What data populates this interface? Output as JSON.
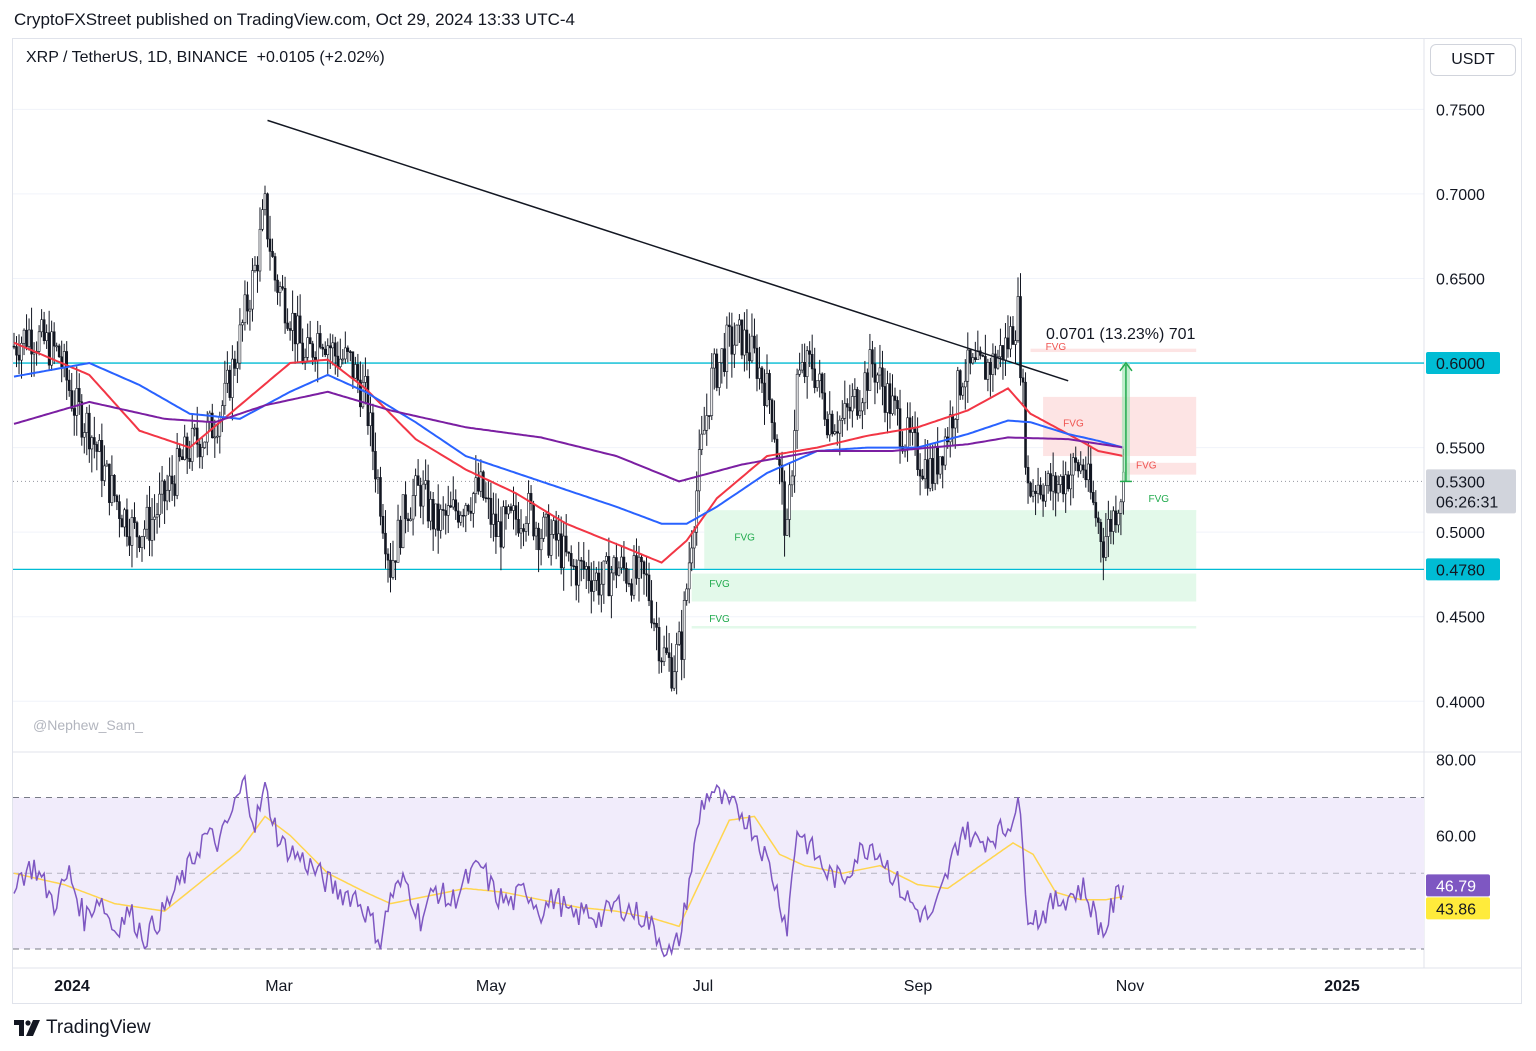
{
  "header": {
    "publish_text": "CryptoFXStreet published on TradingView.com, Oct 29, 2024 13:33 UTC-4",
    "symbol_text": "XRP / TetherUS, 1D, BINANCE",
    "change_text": "+0.0105 (+2.02%)",
    "currency": "USDT",
    "watermark": "@Nephew_Sam_",
    "footer": "TradingView"
  },
  "colors": {
    "up": "#ffffff",
    "down": "#131722",
    "ma_red": "#f23645",
    "ma_blue": "#2962ff",
    "ma_purple": "#7b1fa2",
    "level_line": "#00bcd4",
    "fvg_green": "#e3f9ea",
    "fvg_red": "#fde4e4",
    "rsi_line": "#7e57c2",
    "rsi_ma": "#ffd54f",
    "rsi_band": "#f1ecfb"
  },
  "chart_data": {
    "type": "candlestick",
    "symbol": "XRP / TetherUS",
    "timeframe": "1D",
    "exchange": "BINANCE",
    "y_range": [
      0.37,
      0.765
    ],
    "y_ticks": [
      "0.7500",
      "0.7000",
      "0.6500",
      "0.6000",
      "0.5500",
      "0.5000",
      "0.4500",
      "0.4000"
    ],
    "x_ticks": [
      "2024",
      "Mar",
      "May",
      "Jul",
      "Sep",
      "Nov",
      "2025"
    ],
    "current_price": "0.5300",
    "countdown": "06:26:31",
    "price_anchors": [
      [
        0,
        0.61
      ],
      [
        6,
        0.618
      ],
      [
        12,
        0.612
      ],
      [
        18,
        0.605
      ],
      [
        24,
        0.575
      ],
      [
        30,
        0.562
      ],
      [
        36,
        0.535
      ],
      [
        42,
        0.515
      ],
      [
        48,
        0.5
      ],
      [
        54,
        0.505
      ],
      [
        60,
        0.52
      ],
      [
        66,
        0.54
      ],
      [
        72,
        0.553
      ],
      [
        78,
        0.56
      ],
      [
        84,
        0.578
      ],
      [
        90,
        0.615
      ],
      [
        96,
        0.655
      ],
      [
        100,
        0.69
      ],
      [
        104,
        0.65
      ],
      [
        110,
        0.63
      ],
      [
        116,
        0.6
      ],
      [
        122,
        0.62
      ],
      [
        128,
        0.605
      ],
      [
        134,
        0.6
      ],
      [
        140,
        0.58
      ],
      [
        146,
        0.52
      ],
      [
        150,
        0.48
      ],
      [
        156,
        0.515
      ],
      [
        162,
        0.525
      ],
      [
        168,
        0.505
      ],
      [
        174,
        0.51
      ],
      [
        180,
        0.52
      ],
      [
        186,
        0.525
      ],
      [
        192,
        0.5
      ],
      [
        198,
        0.505
      ],
      [
        204,
        0.515
      ],
      [
        210,
        0.5
      ],
      [
        216,
        0.495
      ],
      [
        222,
        0.478
      ],
      [
        228,
        0.478
      ],
      [
        234,
        0.47
      ],
      [
        240,
        0.48
      ],
      [
        246,
        0.475
      ],
      [
        252,
        0.47
      ],
      [
        258,
        0.43
      ],
      [
        262,
        0.42
      ],
      [
        266,
        0.435
      ],
      [
        270,
        0.5
      ],
      [
        274,
        0.55
      ],
      [
        278,
        0.59
      ],
      [
        284,
        0.61
      ],
      [
        290,
        0.615
      ],
      [
        296,
        0.6
      ],
      [
        302,
        0.575
      ],
      [
        308,
        0.495
      ],
      [
        312,
        0.59
      ],
      [
        318,
        0.6
      ],
      [
        324,
        0.57
      ],
      [
        330,
        0.565
      ],
      [
        336,
        0.58
      ],
      [
        342,
        0.6
      ],
      [
        348,
        0.58
      ],
      [
        354,
        0.56
      ],
      [
        360,
        0.545
      ],
      [
        366,
        0.535
      ],
      [
        372,
        0.56
      ],
      [
        378,
        0.595
      ],
      [
        384,
        0.595
      ],
      [
        390,
        0.6
      ],
      [
        396,
        0.612
      ],
      [
        400,
        0.63
      ],
      [
        404,
        0.525
      ],
      [
        408,
        0.53
      ],
      [
        414,
        0.525
      ],
      [
        420,
        0.535
      ],
      [
        426,
        0.54
      ],
      [
        430,
        0.515
      ],
      [
        434,
        0.495
      ],
      [
        438,
        0.51
      ],
      [
        442,
        0.53
      ]
    ],
    "moving_averages": [
      {
        "name": "MA red",
        "color": "#f23645",
        "points": [
          [
            0,
            0.612
          ],
          [
            30,
            0.593
          ],
          [
            50,
            0.56
          ],
          [
            70,
            0.55
          ],
          [
            90,
            0.575
          ],
          [
            110,
            0.6
          ],
          [
            125,
            0.602
          ],
          [
            140,
            0.585
          ],
          [
            160,
            0.555
          ],
          [
            180,
            0.537
          ],
          [
            200,
            0.523
          ],
          [
            220,
            0.505
          ],
          [
            240,
            0.493
          ],
          [
            258,
            0.482
          ],
          [
            268,
            0.495
          ],
          [
            280,
            0.52
          ],
          [
            300,
            0.545
          ],
          [
            320,
            0.55
          ],
          [
            340,
            0.557
          ],
          [
            360,
            0.562
          ],
          [
            380,
            0.572
          ],
          [
            396,
            0.585
          ],
          [
            405,
            0.57
          ],
          [
            420,
            0.558
          ],
          [
            432,
            0.548
          ],
          [
            442,
            0.545
          ]
        ]
      },
      {
        "name": "MA blue",
        "color": "#2962ff",
        "points": [
          [
            0,
            0.592
          ],
          [
            30,
            0.6
          ],
          [
            50,
            0.587
          ],
          [
            70,
            0.57
          ],
          [
            90,
            0.567
          ],
          [
            110,
            0.583
          ],
          [
            125,
            0.593
          ],
          [
            140,
            0.583
          ],
          [
            160,
            0.565
          ],
          [
            180,
            0.545
          ],
          [
            200,
            0.535
          ],
          [
            220,
            0.525
          ],
          [
            240,
            0.515
          ],
          [
            258,
            0.505
          ],
          [
            268,
            0.505
          ],
          [
            280,
            0.515
          ],
          [
            300,
            0.535
          ],
          [
            320,
            0.548
          ],
          [
            340,
            0.55
          ],
          [
            360,
            0.55
          ],
          [
            380,
            0.558
          ],
          [
            396,
            0.566
          ],
          [
            405,
            0.565
          ],
          [
            420,
            0.558
          ],
          [
            432,
            0.554
          ],
          [
            442,
            0.55
          ]
        ]
      },
      {
        "name": "MA purple",
        "color": "#7b1fa2",
        "points": [
          [
            0,
            0.564
          ],
          [
            30,
            0.577
          ],
          [
            60,
            0.567
          ],
          [
            80,
            0.565
          ],
          [
            100,
            0.575
          ],
          [
            125,
            0.583
          ],
          [
            150,
            0.572
          ],
          [
            180,
            0.562
          ],
          [
            210,
            0.556
          ],
          [
            240,
            0.545
          ],
          [
            265,
            0.53
          ],
          [
            290,
            0.54
          ],
          [
            320,
            0.548
          ],
          [
            350,
            0.548
          ],
          [
            380,
            0.552
          ],
          [
            396,
            0.556
          ],
          [
            420,
            0.555
          ],
          [
            442,
            0.55
          ]
        ]
      }
    ],
    "horizontal_levels": [
      {
        "value": 0.6,
        "label": "0.6000"
      },
      {
        "value": 0.478,
        "label": "0.4780"
      }
    ],
    "trendline": {
      "from": [
        101,
        0.7435
      ],
      "to": [
        420,
        0.5895
      ]
    },
    "fvg_zones": [
      {
        "label": "FVG",
        "kind": "bearish",
        "x0": 405,
        "x1": 471,
        "y0": 0.6085,
        "y1": 0.6065,
        "label_at": [
          411,
          0.6077
        ]
      },
      {
        "label": "FVG",
        "kind": "bearish",
        "x0": 410,
        "x1": 471,
        "y0": 0.58,
        "y1": 0.545,
        "label_at": [
          418,
          0.5625
        ]
      },
      {
        "label": "FVG",
        "kind": "bearish",
        "x0": 443,
        "x1": 471,
        "y0": 0.541,
        "y1": 0.534,
        "label_at": [
          447,
          0.5375
        ]
      },
      {
        "label": "FVG",
        "kind": "bullish",
        "x0": 445,
        "x1": 471,
        "y0": 0.513,
        "y1": 0.513,
        "label_at": [
          452,
          0.5178
        ]
      },
      {
        "label": "FVG",
        "kind": "bullish",
        "x0": 275,
        "x1": 471,
        "y0": 0.513,
        "y1": 0.4785,
        "label_at": [
          287,
          0.495
        ]
      },
      {
        "label": "FVG",
        "kind": "bullish",
        "x0": 270,
        "x1": 471,
        "y0": 0.4755,
        "y1": 0.459,
        "label_at": [
          277,
          0.4675
        ]
      },
      {
        "label": "FVG",
        "kind": "bullish",
        "x0": 270,
        "x1": 471,
        "y0": 0.4445,
        "y1": 0.443,
        "label_at": [
          277,
          0.4468
        ]
      }
    ],
    "measure": {
      "label": "0.0701 (13.23%) 701",
      "x": 443,
      "from": 0.53,
      "to": 0.6001
    },
    "rsi": {
      "y_range": [
        25,
        82
      ],
      "ticks": [
        "80.00",
        "60.00"
      ],
      "band": [
        30,
        70
      ],
      "mid": 50,
      "rsi_value": "46.79",
      "ma_value": "43.86",
      "anchors": [
        [
          0,
          48
        ],
        [
          8,
          52
        ],
        [
          16,
          42
        ],
        [
          22,
          50
        ],
        [
          28,
          38
        ],
        [
          34,
          44
        ],
        [
          40,
          35
        ],
        [
          46,
          40
        ],
        [
          52,
          33
        ],
        [
          58,
          38
        ],
        [
          64,
          45
        ],
        [
          70,
          52
        ],
        [
          76,
          60
        ],
        [
          82,
          58
        ],
        [
          88,
          68
        ],
        [
          92,
          74
        ],
        [
          96,
          63
        ],
        [
          100,
          72
        ],
        [
          106,
          58
        ],
        [
          112,
          55
        ],
        [
          118,
          52
        ],
        [
          124,
          48
        ],
        [
          130,
          45
        ],
        [
          136,
          44
        ],
        [
          142,
          38
        ],
        [
          146,
          32
        ],
        [
          150,
          44
        ],
        [
          156,
          48
        ],
        [
          162,
          38
        ],
        [
          168,
          46
        ],
        [
          174,
          42
        ],
        [
          180,
          48
        ],
        [
          186,
          52
        ],
        [
          192,
          44
        ],
        [
          198,
          42
        ],
        [
          204,
          46
        ],
        [
          210,
          40
        ],
        [
          216,
          44
        ],
        [
          222,
          38
        ],
        [
          228,
          40
        ],
        [
          234,
          38
        ],
        [
          240,
          42
        ],
        [
          246,
          40
        ],
        [
          252,
          38
        ],
        [
          258,
          32
        ],
        [
          262,
          28
        ],
        [
          266,
          35
        ],
        [
          270,
          52
        ],
        [
          274,
          68
        ],
        [
          278,
          72
        ],
        [
          284,
          68
        ],
        [
          290,
          66
        ],
        [
          296,
          60
        ],
        [
          302,
          50
        ],
        [
          308,
          36
        ],
        [
          312,
          62
        ],
        [
          318,
          56
        ],
        [
          324,
          50
        ],
        [
          330,
          48
        ],
        [
          336,
          55
        ],
        [
          342,
          58
        ],
        [
          348,
          52
        ],
        [
          354,
          45
        ],
        [
          360,
          40
        ],
        [
          366,
          38
        ],
        [
          372,
          50
        ],
        [
          378,
          62
        ],
        [
          384,
          58
        ],
        [
          390,
          60
        ],
        [
          396,
          62
        ],
        [
          400,
          70
        ],
        [
          404,
          40
        ],
        [
          408,
          38
        ],
        [
          414,
          42
        ],
        [
          420,
          44
        ],
        [
          426,
          46
        ],
        [
          430,
          40
        ],
        [
          434,
          34
        ],
        [
          438,
          42
        ],
        [
          442,
          46.79
        ]
      ],
      "ma_anchors": [
        [
          0,
          50
        ],
        [
          20,
          47
        ],
        [
          40,
          42
        ],
        [
          60,
          40
        ],
        [
          75,
          48
        ],
        [
          90,
          56
        ],
        [
          100,
          65
        ],
        [
          110,
          60
        ],
        [
          125,
          50
        ],
        [
          140,
          45
        ],
        [
          150,
          42
        ],
        [
          165,
          44
        ],
        [
          180,
          46
        ],
        [
          195,
          45
        ],
        [
          210,
          43
        ],
        [
          225,
          41
        ],
        [
          240,
          40
        ],
        [
          255,
          38
        ],
        [
          265,
          36
        ],
        [
          275,
          50
        ],
        [
          285,
          64
        ],
        [
          295,
          65
        ],
        [
          305,
          55
        ],
        [
          315,
          52
        ],
        [
          330,
          50
        ],
        [
          345,
          52
        ],
        [
          360,
          47
        ],
        [
          372,
          46
        ],
        [
          385,
          52
        ],
        [
          398,
          58
        ],
        [
          406,
          55
        ],
        [
          415,
          45
        ],
        [
          425,
          43
        ],
        [
          435,
          43
        ],
        [
          442,
          43.86
        ]
      ]
    }
  }
}
